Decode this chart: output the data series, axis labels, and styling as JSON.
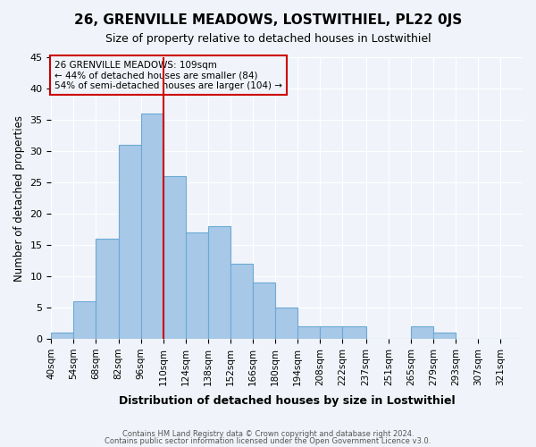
{
  "title": "26, GRENVILLE MEADOWS, LOSTWITHIEL, PL22 0JS",
  "subtitle": "Size of property relative to detached houses in Lostwithiel",
  "xlabel": "Distribution of detached houses by size in Lostwithiel",
  "ylabel": "Number of detached properties",
  "bin_labels": [
    "40sqm",
    "54sqm",
    "68sqm",
    "82sqm",
    "96sqm",
    "110sqm",
    "124sqm",
    "138sqm",
    "152sqm",
    "166sqm",
    "180sqm",
    "194sqm",
    "208sqm",
    "222sqm",
    "237sqm",
    "251sqm",
    "265sqm",
    "279sqm",
    "293sqm",
    "307sqm",
    "321sqm"
  ],
  "bin_edges": [
    40,
    54,
    68,
    82,
    96,
    110,
    124,
    138,
    152,
    166,
    180,
    194,
    208,
    222,
    237,
    251,
    265,
    279,
    293,
    307,
    321,
    335
  ],
  "counts": [
    1,
    6,
    16,
    31,
    36,
    26,
    17,
    18,
    12,
    9,
    5,
    2,
    2,
    2,
    0,
    0,
    2,
    1,
    0,
    0,
    0
  ],
  "bar_color": "#a8c8e8",
  "bar_edgecolor": "#6aaad4",
  "vline_x": 110,
  "vline_color": "#cc0000",
  "annotation_title": "26 GRENVILLE MEADOWS: 109sqm",
  "annotation_line1": "← 44% of detached houses are smaller (84)",
  "annotation_line2": "54% of semi-detached houses are larger (104) →",
  "annotation_box_edgecolor": "#cc0000",
  "ylim": [
    0,
    45
  ],
  "yticks": [
    0,
    5,
    10,
    15,
    20,
    25,
    30,
    35,
    40,
    45
  ],
  "footer1": "Contains HM Land Registry data © Crown copyright and database right 2024.",
  "footer2": "Contains public sector information licensed under the Open Government Licence v3.0.",
  "background_color": "#f0f4fa",
  "figsize": [
    6.0,
    5.0
  ],
  "dpi": 100
}
